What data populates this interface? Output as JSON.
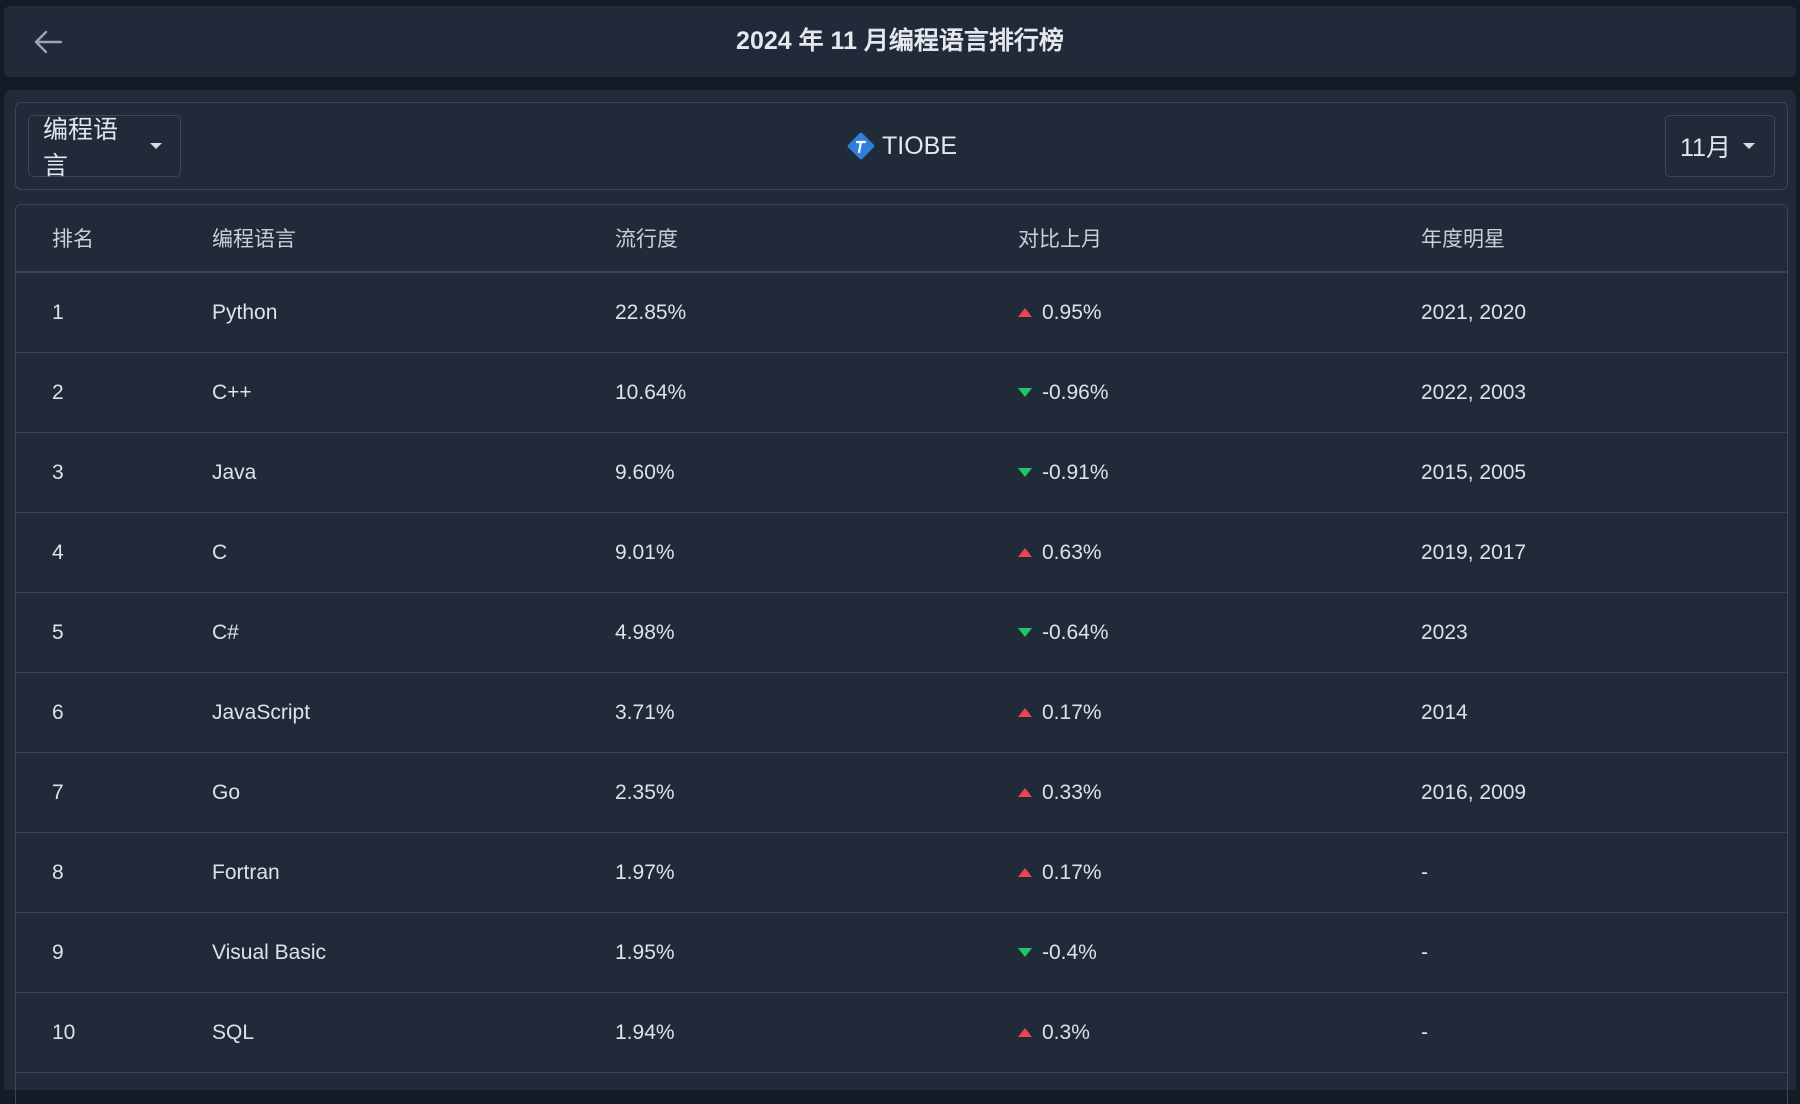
{
  "header": {
    "title": "2024 年 11 月编程语言排行榜",
    "back_icon": "arrow-left-icon"
  },
  "toolbar": {
    "category_select": "编程语言",
    "brand": "TIOBE",
    "month_select": "11月"
  },
  "table": {
    "headers": [
      "排名",
      "编程语言",
      "流行度",
      "对比上月",
      "年度明星"
    ],
    "rows": [
      {
        "rank": "1",
        "language": "Python",
        "popularity": "22.85%",
        "change": "0.95%",
        "trend": "up",
        "star_years": "2021, 2020"
      },
      {
        "rank": "2",
        "language": "C++",
        "popularity": "10.64%",
        "change": "-0.96%",
        "trend": "down",
        "star_years": "2022, 2003"
      },
      {
        "rank": "3",
        "language": "Java",
        "popularity": "9.60%",
        "change": "-0.91%",
        "trend": "down",
        "star_years": "2015, 2005"
      },
      {
        "rank": "4",
        "language": "C",
        "popularity": "9.01%",
        "change": "0.63%",
        "trend": "up",
        "star_years": "2019, 2017"
      },
      {
        "rank": "5",
        "language": "C#",
        "popularity": "4.98%",
        "change": "-0.64%",
        "trend": "down",
        "star_years": "2023"
      },
      {
        "rank": "6",
        "language": "JavaScript",
        "popularity": "3.71%",
        "change": "0.17%",
        "trend": "up",
        "star_years": "2014"
      },
      {
        "rank": "7",
        "language": "Go",
        "popularity": "2.35%",
        "change": "0.33%",
        "trend": "up",
        "star_years": "2016, 2009"
      },
      {
        "rank": "8",
        "language": "Fortran",
        "popularity": "1.97%",
        "change": "0.17%",
        "trend": "up",
        "star_years": "-"
      },
      {
        "rank": "9",
        "language": "Visual Basic",
        "popularity": "1.95%",
        "change": "-0.4%",
        "trend": "down",
        "star_years": "-"
      },
      {
        "rank": "10",
        "language": "SQL",
        "popularity": "1.94%",
        "change": "0.3%",
        "trend": "up",
        "star_years": "-"
      }
    ]
  },
  "colors": {
    "background": "#141b27",
    "surface": "#212a38",
    "border": "#3a4556",
    "up": "#e5484d",
    "down": "#22c55e",
    "brand_blue": "#2f7fd8"
  }
}
